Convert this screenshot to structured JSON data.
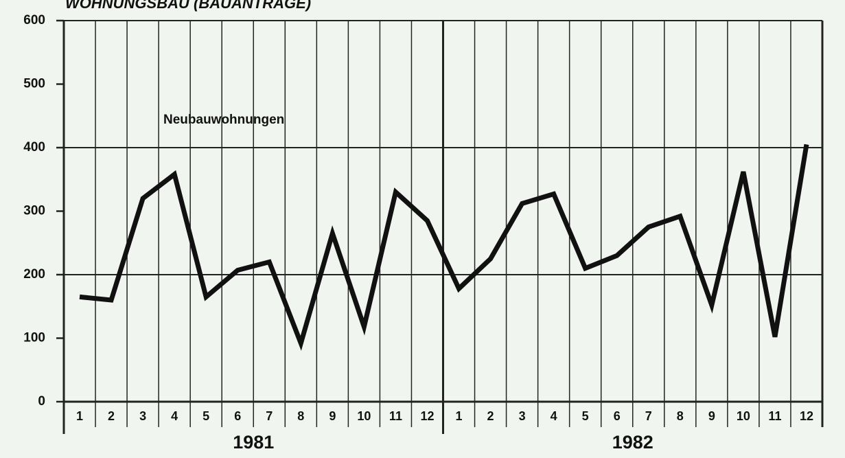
{
  "chart_data": {
    "type": "line",
    "title": "WOHNUNGSBAU (BAUANTRÄGE)",
    "categories": [
      "1",
      "2",
      "3",
      "4",
      "5",
      "6",
      "7",
      "8",
      "9",
      "10",
      "11",
      "12",
      "1",
      "2",
      "3",
      "4",
      "5",
      "6",
      "7",
      "8",
      "9",
      "10",
      "11",
      "12"
    ],
    "groups": [
      "1981",
      "1982"
    ],
    "series": [
      {
        "name": "Neubauwohnungen",
        "color": "#111111",
        "values": [
          165,
          160,
          320,
          358,
          165,
          207,
          220,
          92,
          265,
          118,
          330,
          285,
          178,
          225,
          312,
          327,
          210,
          230,
          275,
          292,
          152,
          362,
          102,
          405
        ]
      }
    ],
    "ylim": [
      0,
      600
    ],
    "yticks": [
      0,
      100,
      200,
      300,
      400,
      500,
      600
    ],
    "grid": true
  }
}
